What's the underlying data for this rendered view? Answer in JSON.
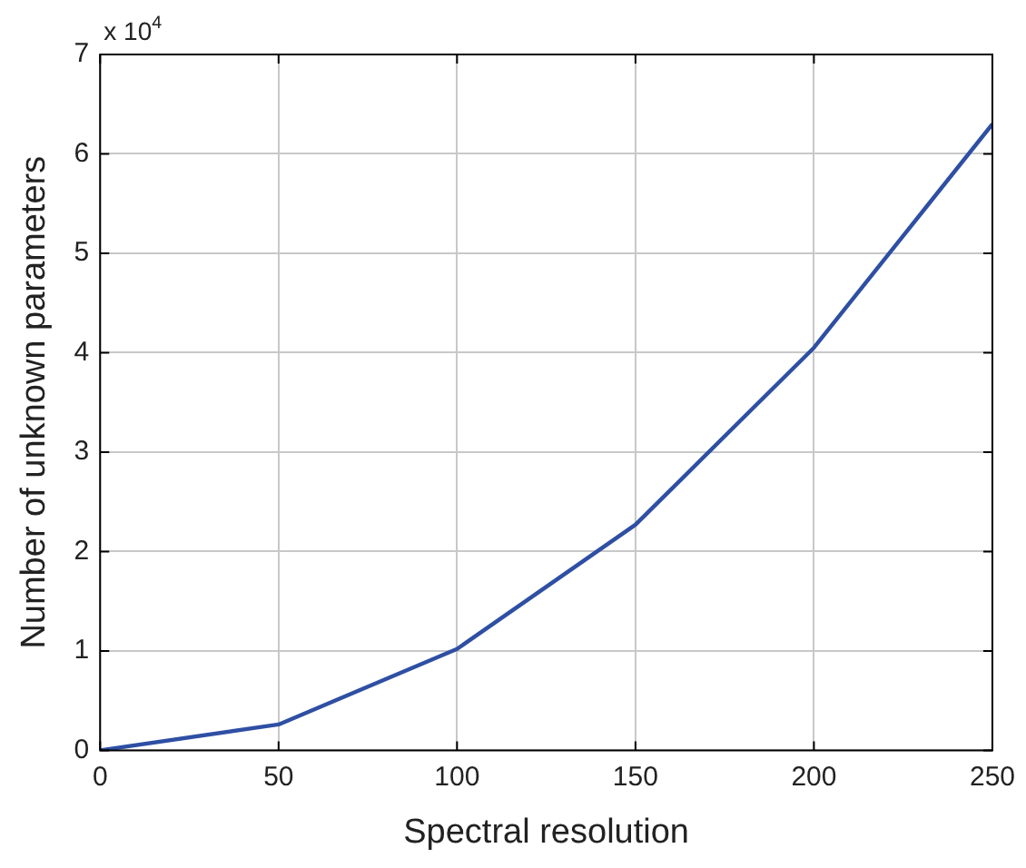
{
  "chart_data": {
    "type": "line",
    "xlabel": "Spectral resolution",
    "ylabel": "Number of unknown parameters",
    "x": [
      0,
      50,
      100,
      150,
      200,
      250
    ],
    "series": [
      {
        "color": "#2e4fa3",
        "values": [
          0,
          0.26,
          1.02,
          2.27,
          4.05,
          6.3
        ]
      }
    ],
    "xlim": [
      0,
      250
    ],
    "xticks": [
      0,
      50,
      100,
      150,
      200,
      250
    ],
    "ylim": [
      0,
      7
    ],
    "yticks": [
      0,
      1,
      2,
      3,
      4,
      5,
      6,
      7
    ],
    "annotations": [
      "x 10$^{4}$"
    ],
    "grid": true,
    "marker": "none",
    "line_style": "solid"
  }
}
